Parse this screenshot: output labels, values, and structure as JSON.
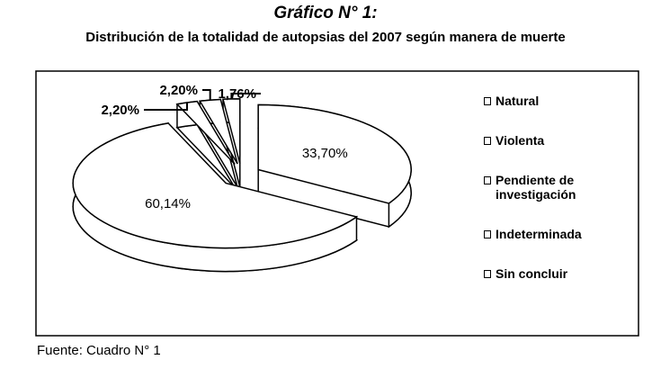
{
  "chart_data": {
    "type": "pie",
    "title": "Gráfico N° 1:",
    "subtitle": "Distribución de la totalidad de autopsias del 2007 según manera de muerte",
    "source": "Fuente: Cuadro N° 1",
    "categories": [
      "Natural",
      "Violenta",
      "Pendiente de investigación",
      "Indeterminada",
      "Sin concluir"
    ],
    "values": [
      33.7,
      60.14,
      2.2,
      2.2,
      1.76
    ],
    "value_labels": [
      "33,70%",
      "60,14%",
      "2,20%",
      "2,20%",
      "1,76%"
    ],
    "color": "#ffffff",
    "legend": "right"
  }
}
